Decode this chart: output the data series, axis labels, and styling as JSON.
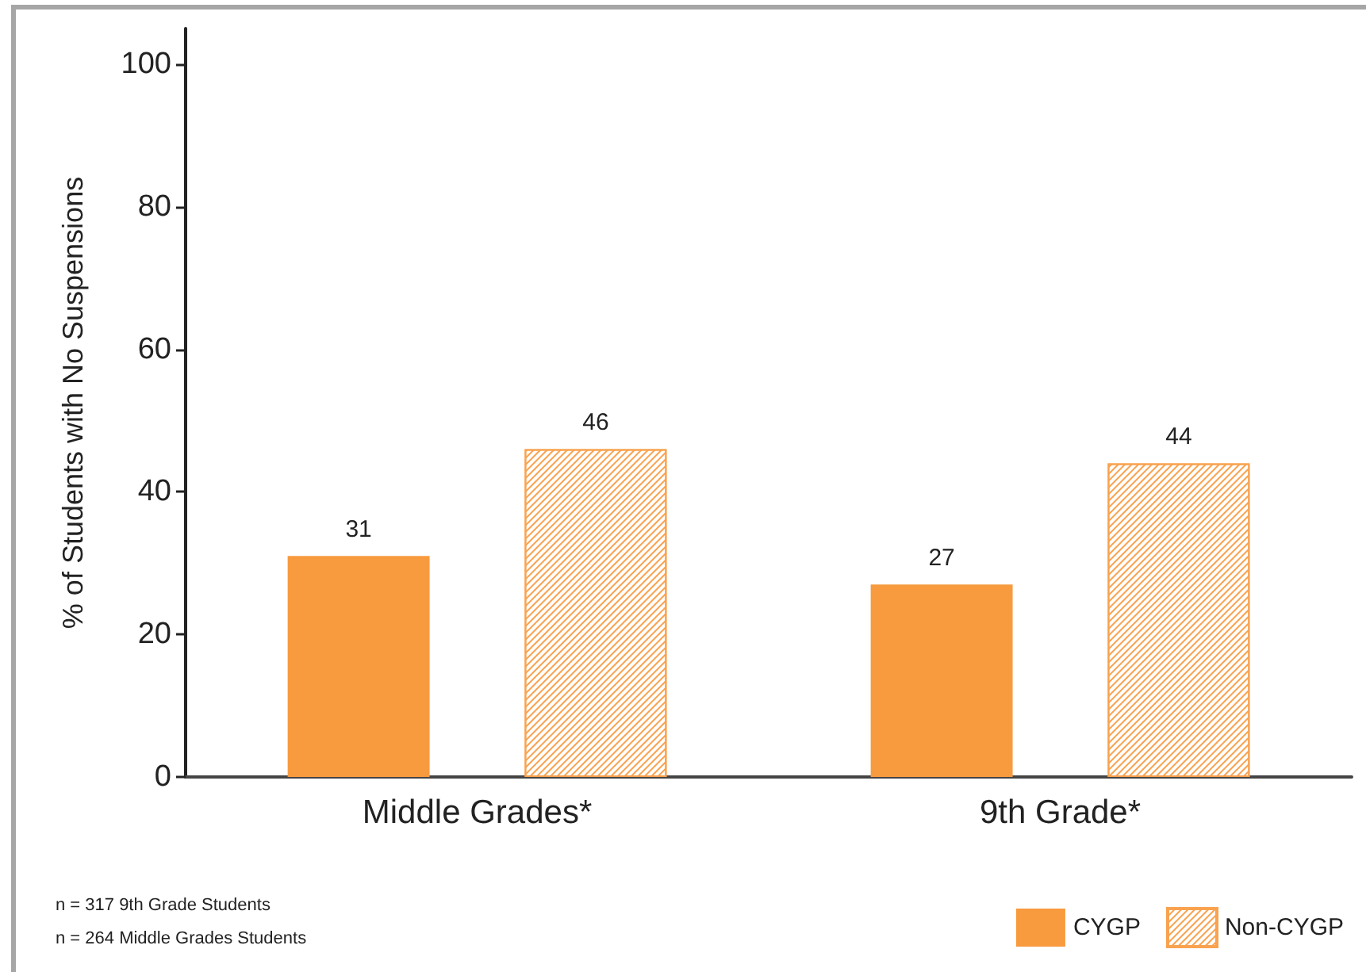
{
  "chart_data": {
    "type": "bar",
    "ylabel": "% of Students with No Suspensions",
    "categories": [
      "Middle Grades*",
      "9th Grade*"
    ],
    "series": [
      {
        "name": "CYGP",
        "color": "#f89a3e",
        "values": [
          31,
          27
        ]
      },
      {
        "name": "Non-CYGP",
        "color": "#f9a24f",
        "values": [
          46,
          44
        ]
      }
    ],
    "ylim": [
      0,
      105
    ],
    "yticks": [
      0,
      20,
      40,
      60,
      80,
      100
    ],
    "grid": false,
    "legend": "bottom right",
    "data_labels": true,
    "annotations": [
      "n = 317 9th Grade Students",
      "n = 264 Middle Grades Students"
    ]
  }
}
